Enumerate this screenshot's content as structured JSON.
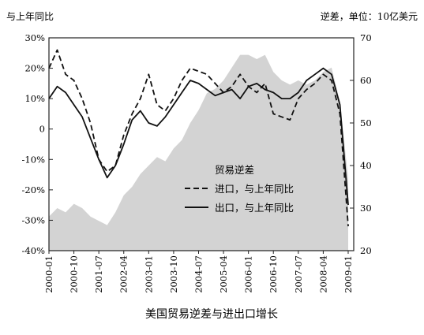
{
  "chart_data": {
    "type": "line",
    "title": "",
    "caption": "美国贸易逆差与进出口增长",
    "left_axis_label": "与上年同比",
    "right_axis_label": "逆差，单位：10亿美元",
    "left_ticks": [
      "30%",
      "20%",
      "10%",
      "0",
      "-10%",
      "-20%",
      "-30%",
      "-40%"
    ],
    "right_ticks": [
      "70",
      "60",
      "50",
      "40",
      "30",
      "20"
    ],
    "x_ticks": [
      "2000-01",
      "2000-10",
      "2001-07",
      "2002-04",
      "2003-01",
      "2003-10",
      "2004-07",
      "2005-04",
      "2006-01",
      "2006-10",
      "2007-07",
      "2008-04",
      "2009-01"
    ],
    "ylim_left": [
      -0.4,
      0.3
    ],
    "ylim_right": [
      20,
      70
    ],
    "legend_position": "center-right",
    "legend": [
      {
        "key": "deficit",
        "label": "贸易逆差",
        "style": "area"
      },
      {
        "key": "imports",
        "label": "进口，与上年同比",
        "style": "dashed"
      },
      {
        "key": "exports",
        "label": "出口，与上年同比",
        "style": "solid"
      }
    ],
    "series": [
      {
        "key": "deficit",
        "name": "贸易逆差",
        "axis": "right",
        "x": [
          "2000-01",
          "2000-04",
          "2000-07",
          "2000-10",
          "2001-01",
          "2001-04",
          "2001-07",
          "2001-10",
          "2002-01",
          "2002-04",
          "2002-07",
          "2002-10",
          "2003-01",
          "2003-04",
          "2003-07",
          "2003-10",
          "2004-01",
          "2004-04",
          "2004-07",
          "2004-10",
          "2005-01",
          "2005-04",
          "2005-07",
          "2005-10",
          "2006-01",
          "2006-04",
          "2006-07",
          "2006-10",
          "2007-01",
          "2007-04",
          "2007-07",
          "2007-10",
          "2008-01",
          "2008-04",
          "2008-07",
          "2008-10",
          "2009-01"
        ],
        "values": [
          28,
          30,
          29,
          31,
          30,
          28,
          27,
          26,
          29,
          33,
          35,
          38,
          40,
          42,
          41,
          44,
          46,
          50,
          53,
          57,
          58,
          60,
          63,
          66,
          66,
          65,
          66,
          62,
          60,
          59,
          60,
          59,
          60,
          62,
          63,
          55,
          37
        ]
      },
      {
        "key": "imports",
        "name": "进口，与上年同比",
        "axis": "left",
        "x": [
          "2000-01",
          "2000-04",
          "2000-07",
          "2000-10",
          "2001-01",
          "2001-04",
          "2001-07",
          "2001-10",
          "2002-01",
          "2002-04",
          "2002-07",
          "2002-10",
          "2003-01",
          "2003-04",
          "2003-07",
          "2003-10",
          "2004-01",
          "2004-04",
          "2004-07",
          "2004-10",
          "2005-01",
          "2005-04",
          "2005-07",
          "2005-10",
          "2006-01",
          "2006-04",
          "2006-07",
          "2006-10",
          "2007-01",
          "2007-04",
          "2007-07",
          "2007-10",
          "2008-01",
          "2008-04",
          "2008-07",
          "2008-10",
          "2009-01"
        ],
        "values": [
          0.2,
          0.26,
          0.18,
          0.16,
          0.1,
          0.02,
          -0.1,
          -0.14,
          -0.12,
          -0.02,
          0.05,
          0.1,
          0.18,
          0.08,
          0.06,
          0.1,
          0.16,
          0.2,
          0.19,
          0.18,
          0.15,
          0.12,
          0.14,
          0.18,
          0.14,
          0.12,
          0.15,
          0.05,
          0.04,
          0.03,
          0.1,
          0.13,
          0.15,
          0.18,
          0.16,
          0.05,
          -0.32
        ]
      },
      {
        "key": "exports",
        "name": "出口，与上年同比",
        "axis": "left",
        "x": [
          "2000-01",
          "2000-04",
          "2000-07",
          "2000-10",
          "2001-01",
          "2001-04",
          "2001-07",
          "2001-10",
          "2002-01",
          "2002-04",
          "2002-07",
          "2002-10",
          "2003-01",
          "2003-04",
          "2003-07",
          "2003-10",
          "2004-01",
          "2004-04",
          "2004-07",
          "2004-10",
          "2005-01",
          "2005-04",
          "2005-07",
          "2005-10",
          "2006-01",
          "2006-04",
          "2006-07",
          "2006-10",
          "2007-01",
          "2007-04",
          "2007-07",
          "2007-10",
          "2008-01",
          "2008-04",
          "2008-07",
          "2008-10",
          "2009-01"
        ],
        "values": [
          0.1,
          0.14,
          0.12,
          0.08,
          0.04,
          -0.03,
          -0.1,
          -0.16,
          -0.12,
          -0.05,
          0.03,
          0.06,
          0.02,
          0.01,
          0.04,
          0.08,
          0.12,
          0.16,
          0.15,
          0.13,
          0.11,
          0.12,
          0.13,
          0.1,
          0.14,
          0.15,
          0.13,
          0.12,
          0.1,
          0.1,
          0.12,
          0.16,
          0.18,
          0.2,
          0.18,
          0.08,
          -0.25
        ]
      }
    ]
  }
}
